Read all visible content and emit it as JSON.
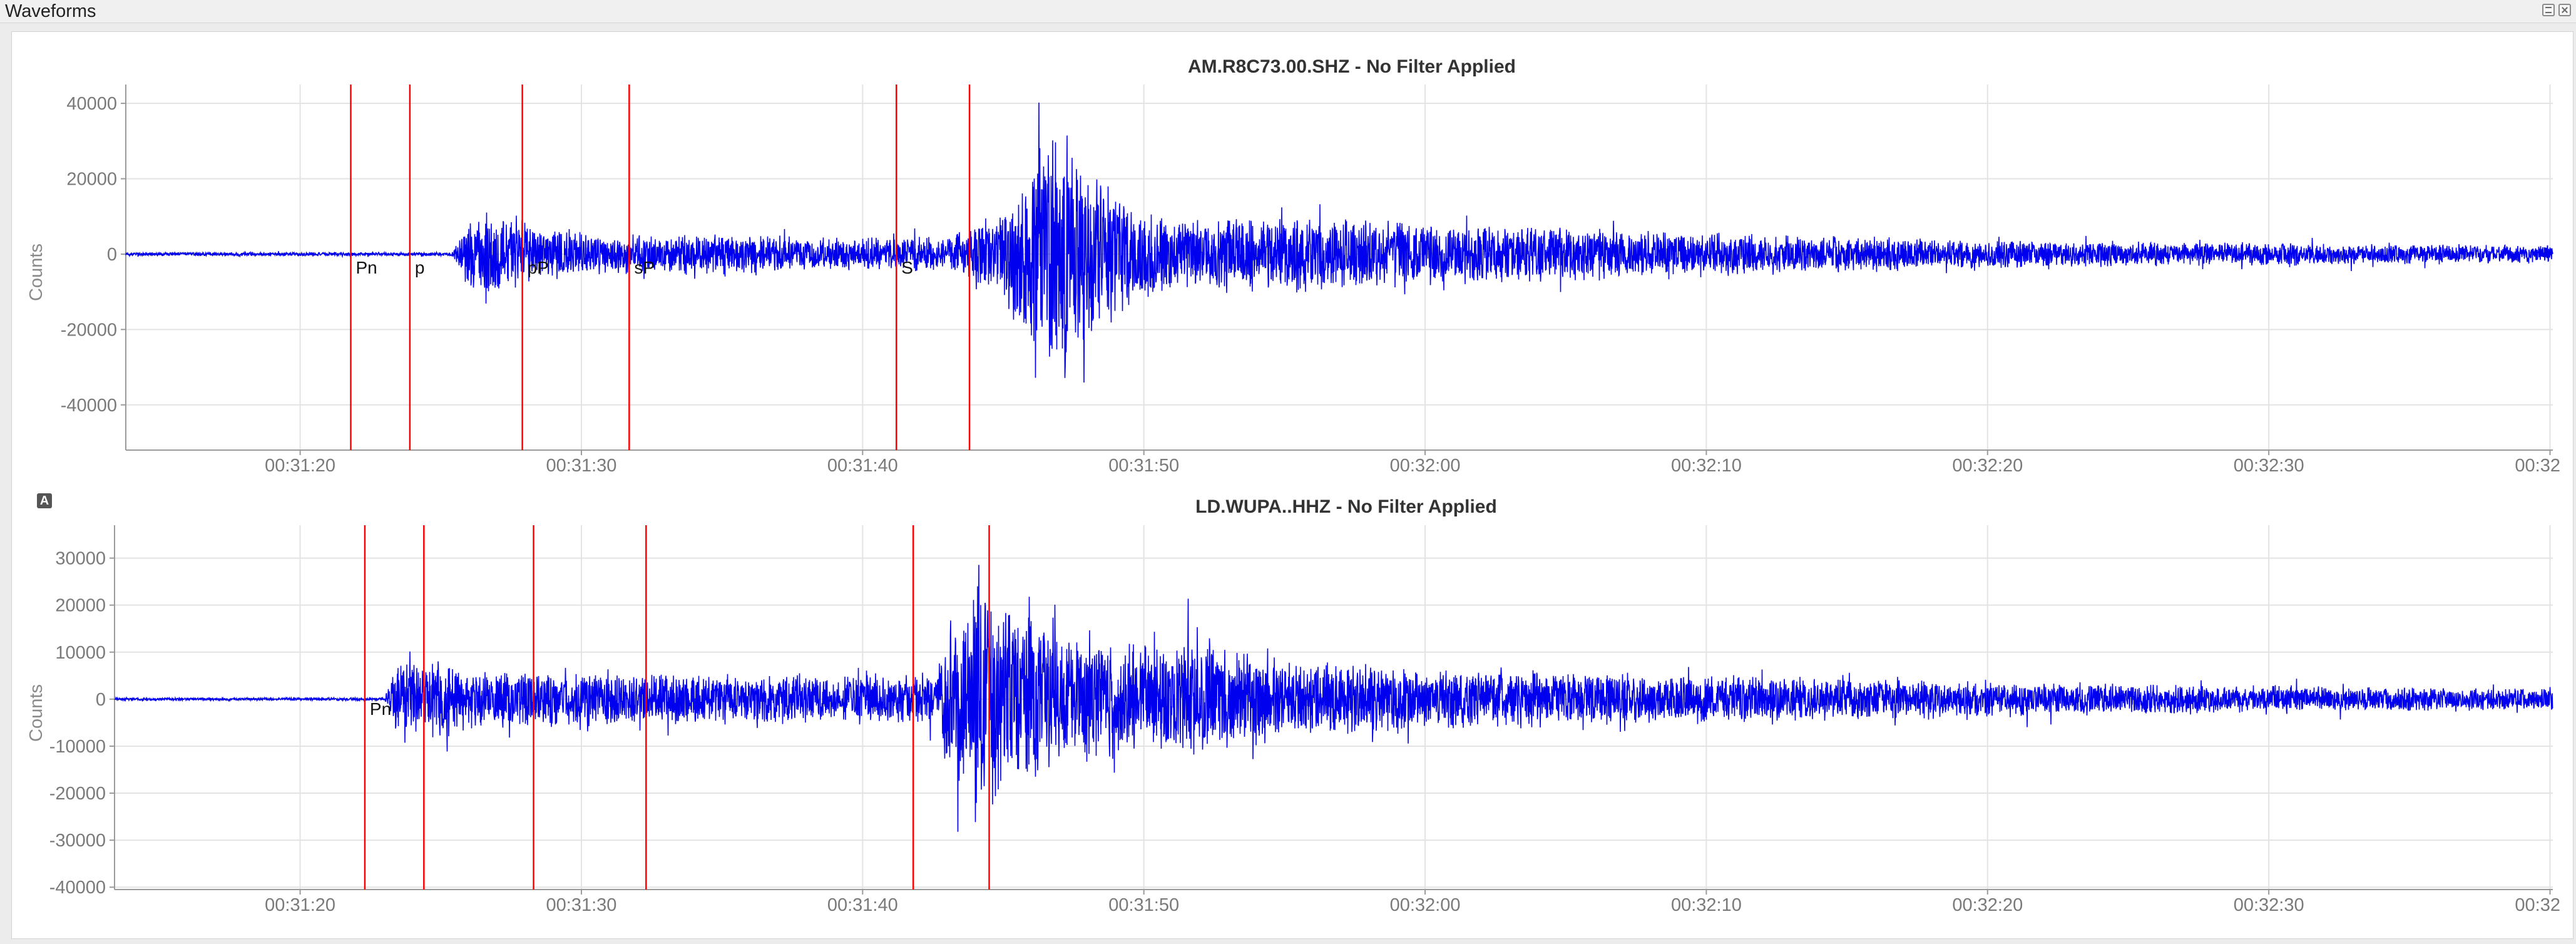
{
  "window": {
    "title": "Waveforms"
  },
  "panel_badge": "A",
  "chart_data": [
    {
      "type": "line",
      "title": "AM.R8C73.00.SHZ - No Filter Applied",
      "xlabel": "",
      "ylabel": "Counts",
      "x_unit": "seconds after 00:31:00",
      "xlim": [
        13.8,
        100.1
      ],
      "ylim": [
        -52000,
        45000
      ],
      "xtick_values": [
        20,
        30,
        40,
        50,
        60,
        70,
        80,
        90,
        100
      ],
      "xtick_labels": [
        "00:31:20",
        "00:31:30",
        "00:31:40",
        "00:31:50",
        "00:32:00",
        "00:32:10",
        "00:32:20",
        "00:32:30",
        "00:32"
      ],
      "yticks": [
        -40000,
        -20000,
        0,
        20000,
        40000
      ],
      "ytick_labels": [
        "-40000",
        "-20000",
        "0",
        "20000",
        "40000"
      ],
      "grid": true,
      "series_color": "#0000ee",
      "phase_color": "#ff0000",
      "phases": [
        {
          "label": "Pn",
          "time": 21.8
        },
        {
          "label": "p",
          "time": 23.9
        },
        {
          "label": "pP",
          "time": 27.9
        },
        {
          "label": "sP",
          "time": 31.7
        },
        {
          "label": "S",
          "time": 41.2
        },
        {
          "label": "",
          "time": 43.8
        }
      ],
      "envelope": [
        [
          13.8,
          500
        ],
        [
          25.4,
          500
        ],
        [
          26.0,
          9000
        ],
        [
          26.8,
          14000
        ],
        [
          27.4,
          12000
        ],
        [
          28.5,
          7000
        ],
        [
          32.0,
          5500
        ],
        [
          36.0,
          5500
        ],
        [
          40.0,
          4500
        ],
        [
          43.0,
          5000
        ],
        [
          45.0,
          12000
        ],
        [
          46.0,
          30000
        ],
        [
          46.8,
          38000
        ],
        [
          48.0,
          26000
        ],
        [
          50.0,
          12000
        ],
        [
          52.0,
          10000
        ],
        [
          55.0,
          11000
        ],
        [
          60.0,
          9000
        ],
        [
          65.0,
          7500
        ],
        [
          70.0,
          6000
        ],
        [
          80.0,
          4000
        ],
        [
          90.0,
          3200
        ],
        [
          100.1,
          2500
        ]
      ]
    },
    {
      "type": "line",
      "title": "LD.WUPA..HHZ - No Filter Applied",
      "xlabel": "",
      "ylabel": "Counts",
      "x_unit": "seconds after 00:31:00",
      "xlim": [
        13.4,
        100.1
      ],
      "ylim": [
        -40500,
        37000
      ],
      "xtick_values": [
        20,
        30,
        40,
        50,
        60,
        70,
        80,
        90,
        100
      ],
      "xtick_labels": [
        "00:31:20",
        "00:31:30",
        "00:31:40",
        "00:31:50",
        "00:32:00",
        "00:32:10",
        "00:32:20",
        "00:32:30",
        "00:32"
      ],
      "yticks": [
        -40000,
        -30000,
        -20000,
        -10000,
        0,
        10000,
        20000,
        30000
      ],
      "ytick_labels": [
        "-40000",
        "-30000",
        "-20000",
        "-10000",
        "0",
        "10000",
        "20000",
        "30000"
      ],
      "grid": true,
      "series_color": "#0000ee",
      "phase_color": "#ff0000",
      "phases": [
        {
          "label": "Pn",
          "time": 22.3
        },
        {
          "label": "",
          "time": 24.4
        },
        {
          "label": "",
          "time": 28.3
        },
        {
          "label": "",
          "time": 32.3
        },
        {
          "label": "",
          "time": 41.8
        },
        {
          "label": "",
          "time": 44.5
        }
      ],
      "envelope": [
        [
          13.4,
          300
        ],
        [
          23.0,
          300
        ],
        [
          23.4,
          7000
        ],
        [
          24.5,
          9000
        ],
        [
          26.0,
          6500
        ],
        [
          30.0,
          6000
        ],
        [
          35.0,
          5500
        ],
        [
          40.0,
          5500
        ],
        [
          42.5,
          6000
        ],
        [
          43.2,
          20000
        ],
        [
          44.0,
          30000
        ],
        [
          45.0,
          24000
        ],
        [
          47.0,
          15000
        ],
        [
          50.0,
          12000
        ],
        [
          52.0,
          14000
        ],
        [
          55.0,
          9000
        ],
        [
          60.0,
          7000
        ],
        [
          70.0,
          5500
        ],
        [
          80.0,
          4000
        ],
        [
          90.0,
          3000
        ],
        [
          100.1,
          2500
        ]
      ]
    }
  ]
}
